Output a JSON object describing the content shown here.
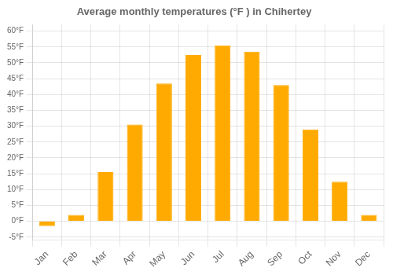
{
  "chart_data": {
    "type": "bar",
    "title": "Average monthly temperatures (°F ) in Chihertey",
    "categories": [
      "Jan",
      "Feb",
      "Mar",
      "Apr",
      "May",
      "Jun",
      "Jul",
      "Aug",
      "Sep",
      "Oct",
      "Nov",
      "Dec"
    ],
    "values": [
      -1.5,
      2.0,
      15.5,
      30.5,
      43.5,
      52.5,
      55.5,
      53.5,
      43.0,
      29.0,
      12.5,
      2.0
    ],
    "color": "#FFAA00",
    "ylim": [
      -6,
      62
    ],
    "yticks": [
      {
        "value": -5,
        "label": "-5°F"
      },
      {
        "value": 0,
        "label": "0°F"
      },
      {
        "value": 5,
        "label": "5°F"
      },
      {
        "value": 10,
        "label": "10°F"
      },
      {
        "value": 15,
        "label": "15°F"
      },
      {
        "value": 20,
        "label": "20°F"
      },
      {
        "value": 25,
        "label": "25°F"
      },
      {
        "value": 30,
        "label": "30°F"
      },
      {
        "value": 35,
        "label": "35°F"
      },
      {
        "value": 40,
        "label": "40°F"
      },
      {
        "value": 45,
        "label": "45°F"
      },
      {
        "value": 50,
        "label": "50°F"
      },
      {
        "value": 55,
        "label": "55°F"
      },
      {
        "value": 60,
        "label": "60°F"
      }
    ],
    "grid": true
  }
}
